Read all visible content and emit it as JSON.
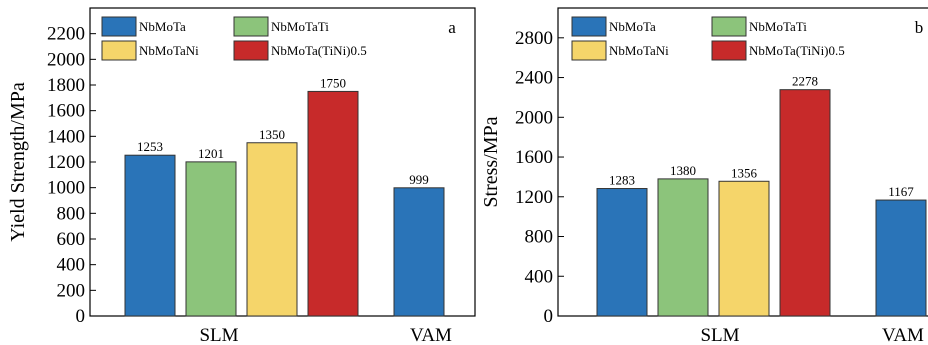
{
  "chart_data": [
    {
      "type": "bar",
      "panel_label": "a",
      "ylabel": "Yield Strength/MPa",
      "ylim": [
        0,
        2400
      ],
      "yticks": [
        0,
        200,
        400,
        600,
        800,
        1000,
        1200,
        1400,
        1600,
        1800,
        2000,
        2200
      ],
      "groups": [
        "SLM",
        "VAM"
      ],
      "legend_position": "top",
      "series": [
        {
          "name": "NbMoTa",
          "color": "#2a74b8",
          "values": [
            1253,
            999
          ]
        },
        {
          "name": "NbMoTaTi",
          "color": "#8cc47b",
          "values": [
            1201,
            null
          ]
        },
        {
          "name": "NbMoTaNi",
          "color": "#f5d56a",
          "values": [
            1350,
            null
          ]
        },
        {
          "name": "NbMoTa(TiNi)0.5",
          "color": "#c72a2a",
          "values": [
            1750,
            null
          ]
        }
      ],
      "data_labels": [
        "1253",
        "1201",
        "1350",
        "1750",
        "999"
      ]
    },
    {
      "type": "bar",
      "panel_label": "b",
      "ylabel": "Stress/MPa",
      "ylim": [
        0,
        3100
      ],
      "yticks": [
        0,
        400,
        800,
        1200,
        1600,
        2000,
        2400,
        2800
      ],
      "groups": [
        "SLM",
        "VAM"
      ],
      "legend_position": "top",
      "series": [
        {
          "name": "NbMoTa",
          "color": "#2a74b8",
          "values": [
            1283,
            1167
          ]
        },
        {
          "name": "NbMoTaTi",
          "color": "#8cc47b",
          "values": [
            1380,
            null
          ]
        },
        {
          "name": "NbMoTaNi",
          "color": "#f5d56a",
          "values": [
            1356,
            null
          ]
        },
        {
          "name": "NbMoTa(TiNi)0.5",
          "color": "#c72a2a",
          "values": [
            2278,
            null
          ]
        }
      ],
      "data_labels": [
        "1283",
        "1380",
        "1356",
        "2278",
        "1167"
      ]
    }
  ]
}
